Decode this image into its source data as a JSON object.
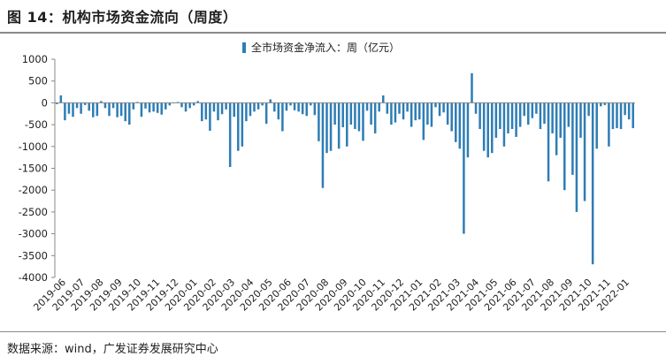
{
  "figure_title": "图 14：机构市场资金流向（周度）",
  "source_text": "数据来源：wind，广发证券发展研究中心",
  "colors": {
    "bar": "#2e7db5",
    "axis": "#888888"
  },
  "chart_data": {
    "type": "bar",
    "title": "",
    "xlabel": "",
    "ylabel": "",
    "legend": {
      "label": "全市场资金净流入：周（亿元）",
      "position": "top"
    },
    "ylim": [
      -4000,
      1000
    ],
    "yticks": [
      1000,
      500,
      0,
      -500,
      -1000,
      -1500,
      -2000,
      -2500,
      -3000,
      -3500,
      -4000
    ],
    "grid": false,
    "x_tick_labels": [
      "2019-06",
      "2019-07",
      "2019-08",
      "2019-09",
      "2019-10",
      "2019-11",
      "2019-12",
      "2020-01",
      "2020-02",
      "2020-03",
      "2020-04",
      "2020-05",
      "2020-06",
      "2020-07",
      "2020-08",
      "2020-09",
      "2020-10",
      "2020-11",
      "2020-12",
      "2021-01",
      "2021-02",
      "2021-03",
      "2021-04",
      "2021-05",
      "2021-06",
      "2021-07",
      "2021-08",
      "2021-09",
      "2021-10",
      "2021-11",
      "2022-01"
    ],
    "series": [
      {
        "name": "全市场资金净流入：周（亿元）",
        "values": [
          -30,
          170,
          -400,
          -250,
          -320,
          -120,
          -250,
          -50,
          -180,
          -330,
          -300,
          40,
          -120,
          -300,
          -120,
          -330,
          -300,
          -420,
          -500,
          -150,
          20,
          -320,
          -130,
          -220,
          -200,
          -230,
          -270,
          -150,
          -60,
          0,
          20,
          -100,
          -200,
          -120,
          -60,
          40,
          -420,
          -380,
          -640,
          -200,
          -400,
          -260,
          -150,
          -1470,
          -320,
          -1100,
          -1000,
          -420,
          -300,
          -200,
          -150,
          -60,
          -480,
          80,
          -200,
          -380,
          -650,
          -180,
          -60,
          -170,
          -200,
          -260,
          -300,
          -60,
          -280,
          -880,
          -1950,
          -1150,
          -1100,
          -500,
          -1050,
          -560,
          -1000,
          -500,
          -600,
          -650,
          -870,
          -180,
          -500,
          -700,
          -200,
          170,
          -250,
          -500,
          -450,
          -250,
          -380,
          -200,
          -550,
          -400,
          -380,
          -850,
          -500,
          -550,
          -100,
          -300,
          -220,
          -500,
          -650,
          -900,
          -1050,
          -3000,
          -1250,
          680,
          -250,
          -600,
          -1100,
          -1250,
          -1150,
          -800,
          -600,
          -1000,
          -700,
          -600,
          -780,
          -550,
          -300,
          -500,
          -350,
          -250,
          -600,
          -480,
          -1800,
          -700,
          -1200,
          -800,
          -2000,
          -550,
          -1650,
          -2500,
          -800,
          -2250,
          -300,
          -3700,
          -1050,
          -80,
          -50,
          -1000,
          -600,
          -580,
          -600,
          -280,
          -380,
          -580
        ]
      }
    ]
  }
}
